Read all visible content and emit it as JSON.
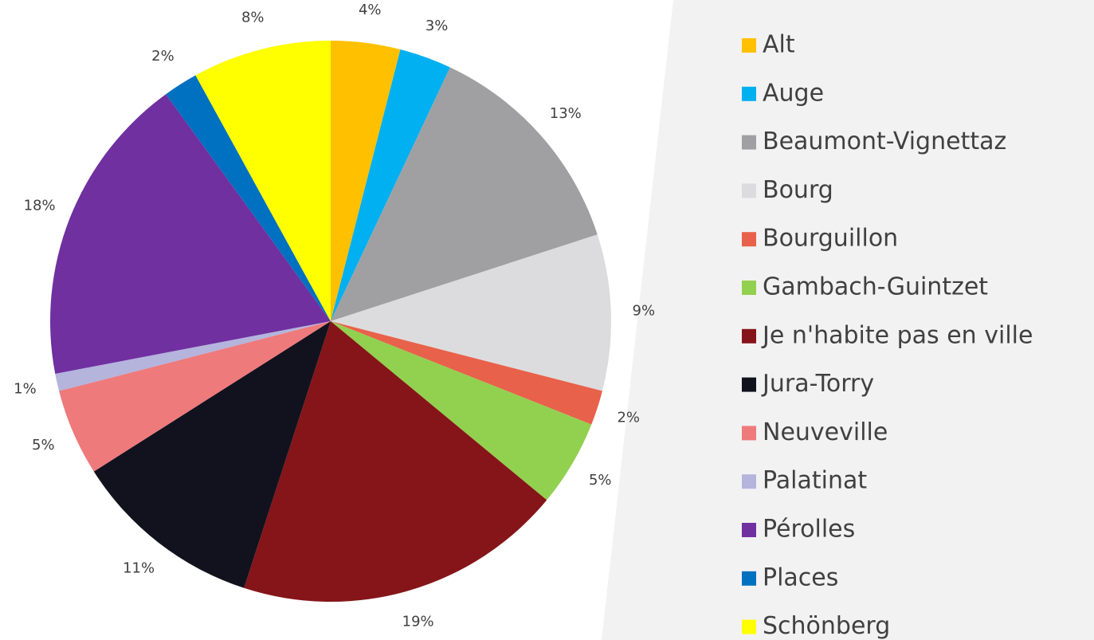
{
  "chart_data": {
    "type": "pie",
    "categories": [
      "Alt",
      "Auge",
      "Beaumont-Vignettaz",
      "Bourg",
      "Bourguillon",
      "Gambach-Guintzet",
      "Je n'habite pas en ville",
      "Jura-Torry",
      "Neuveville",
      "Palatinat",
      "Pérolles",
      "Places",
      "Schönberg"
    ],
    "values": [
      4,
      3,
      13,
      9,
      2,
      5,
      19,
      11,
      5,
      1,
      18,
      2,
      8
    ],
    "value_labels": [
      "4%",
      "3%",
      "13%",
      "9%",
      "2%",
      "5%",
      "19%",
      "11%",
      "5%",
      "1%",
      "18%",
      "2%",
      "8%"
    ],
    "colors": [
      "#ffc000",
      "#00b0f0",
      "#a0a0a3",
      "#dcdcde",
      "#e8614a",
      "#92d050",
      "#851518",
      "#12121f",
      "#ee7a7c",
      "#b4b4dd",
      "#7030a0",
      "#0070c0",
      "#ffff00"
    ]
  }
}
